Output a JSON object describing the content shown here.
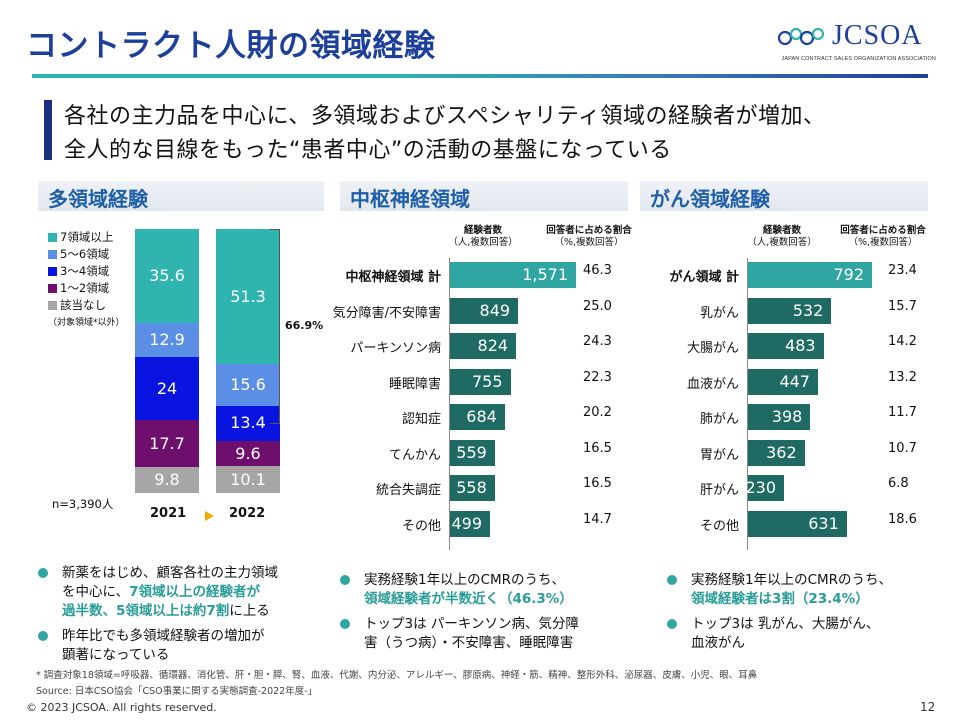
{
  "header": {
    "title": "コントラクト人財の領域経験",
    "logo_text": "JCSOA",
    "logo_subtitle": "JAPAN CONTRACT SALES ORGANIZATION ASSOCIATION"
  },
  "headline": {
    "line1": "各社の主力品を中心に、多領域およびスペシャリティ領域の経験者が増加、",
    "line2": "全人的な目線をもった“患者中心”の活動の基盤になっている"
  },
  "sections": {
    "multi": "多領域経験",
    "cns": "中枢神経領域",
    "cancer": "がん領域経験"
  },
  "colors": {
    "teal": "#2fb4b0",
    "light_blue": "#5b8fe6",
    "blue": "#0a14e0",
    "purple": "#6e0f6e",
    "gray": "#a6a6a6",
    "dark_teal_bar": "#1f6b63",
    "bar_total": "#2fa6a2"
  },
  "chart_data": [
    {
      "type": "bar",
      "stacked": true,
      "categories": [
        "2021",
        "2022"
      ],
      "series": [
        {
          "name": "該当なし",
          "values": [
            9.8,
            10.1
          ],
          "color": "#a6a6a6"
        },
        {
          "name": "1～2領域",
          "values": [
            17.7,
            9.6
          ],
          "color": "#6e0f6e"
        },
        {
          "name": "3～4領域",
          "values": [
            24,
            13.4
          ],
          "color": "#0a14e0"
        },
        {
          "name": "5～6領域",
          "values": [
            12.9,
            15.6
          ],
          "color": "#5b8fe6"
        },
        {
          "name": "7領域以上",
          "values": [
            35.6,
            51.3
          ],
          "color": "#2fb4b0"
        }
      ],
      "legend_order": [
        "7領域以上",
        "5～6領域",
        "3～4領域",
        "1～2領域",
        "該当なし"
      ],
      "legend_note": "（対象領域*以外）",
      "n_label": "n=3,390人",
      "bracket_label": "66.9%",
      "ylim": [
        0,
        100
      ]
    },
    {
      "type": "bar",
      "orientation": "horizontal",
      "col_head_count": "経験者数",
      "col_head_count_sub": "（人,複数回答）",
      "col_head_pct": "回答者に占める割合",
      "col_head_pct_sub": "（%,複数回答）",
      "categories": [
        "中枢神経領域  計",
        "気分障害/不安障害",
        "パーキンソン病",
        "睡眠障害",
        "認知症",
        "てんかん",
        "統合失調症",
        "その他"
      ],
      "values": [
        1571,
        849,
        824,
        755,
        684,
        559,
        558,
        499
      ],
      "value_labels": [
        "1,571",
        "849",
        "824",
        "755",
        "684",
        "559",
        "558",
        "499"
      ],
      "pct": [
        "46.3",
        "25.0",
        "24.3",
        "22.3",
        "20.2",
        "16.5",
        "16.5",
        "14.7"
      ],
      "xlim": [
        0,
        1571
      ]
    },
    {
      "type": "bar",
      "orientation": "horizontal",
      "col_head_count": "経験者数",
      "col_head_count_sub": "（人,複数回答）",
      "col_head_pct": "回答者に占める割合",
      "col_head_pct_sub": "（%,複数回答）",
      "categories": [
        "がん領域  計",
        "乳がん",
        "大腸がん",
        "血液がん",
        "肺がん",
        "胃がん",
        "肝がん",
        "その他"
      ],
      "values": [
        792,
        532,
        483,
        447,
        398,
        362,
        230,
        631
      ],
      "value_labels": [
        "792",
        "532",
        "483",
        "447",
        "398",
        "362",
        "230",
        "631"
      ],
      "pct": [
        "23.4",
        "15.7",
        "14.2",
        "13.2",
        "11.7",
        "10.7",
        "6.8",
        "18.6"
      ],
      "xlim": [
        0,
        792
      ]
    }
  ],
  "bullets": {
    "multi": [
      {
        "parts": [
          {
            "t": "新薬をはじめ、顧客各社の主力領域",
            "h": false
          }
        ]
      },
      {
        "parts": [
          {
            "t": "を中心に、",
            "h": false
          },
          {
            "t": "7領域以上の経験者が",
            "h": true
          }
        ]
      },
      {
        "parts": [
          {
            "t": "過半数、5領域以上は約7割",
            "h": true
          },
          {
            "t": "に上る",
            "h": false
          }
        ]
      },
      {
        "parts": [
          {
            "t": "昨年比でも多領域経験者の増加が",
            "h": false
          }
        ]
      },
      {
        "parts": [
          {
            "t": "顕著になっている",
            "h": false
          }
        ]
      }
    ],
    "cns": [
      {
        "parts": [
          {
            "t": "実務経験1年以上のCMRのうち、",
            "h": false
          }
        ]
      },
      {
        "parts": [
          {
            "t": "領域経験者が半数近く（46.3%）",
            "h": true
          }
        ]
      },
      {
        "parts": [
          {
            "t": "トップ3は パーキンソン病、気分障",
            "h": false
          }
        ]
      },
      {
        "parts": [
          {
            "t": "害（うつ病）・不安障害、睡眠障害",
            "h": false
          }
        ]
      }
    ],
    "cancer": [
      {
        "parts": [
          {
            "t": "実務経験1年以上のCMRのうち、",
            "h": false
          }
        ]
      },
      {
        "parts": [
          {
            "t": "領域経験者は3割（23.4%）",
            "h": true
          }
        ]
      },
      {
        "parts": [
          {
            "t": "トップ3は 乳がん、大腸がん、",
            "h": false
          }
        ]
      },
      {
        "parts": [
          {
            "t": "血液がん",
            "h": false
          }
        ]
      }
    ]
  },
  "footer": {
    "note": "* 調査対象18領域=呼吸器、循環器、消化管、肝・胆・膵、腎、血液、代謝、内分泌、アレルギー、膠原病、神経・筋、精神、整形外科、泌尿器、皮膚、小児、眼、耳鼻",
    "source": "Source: 日本CSO協会「CSO事業に関する実態調査-2022年度-」",
    "copyright": "© 2023 JCSOA. All rights reserved.",
    "page": "12"
  }
}
